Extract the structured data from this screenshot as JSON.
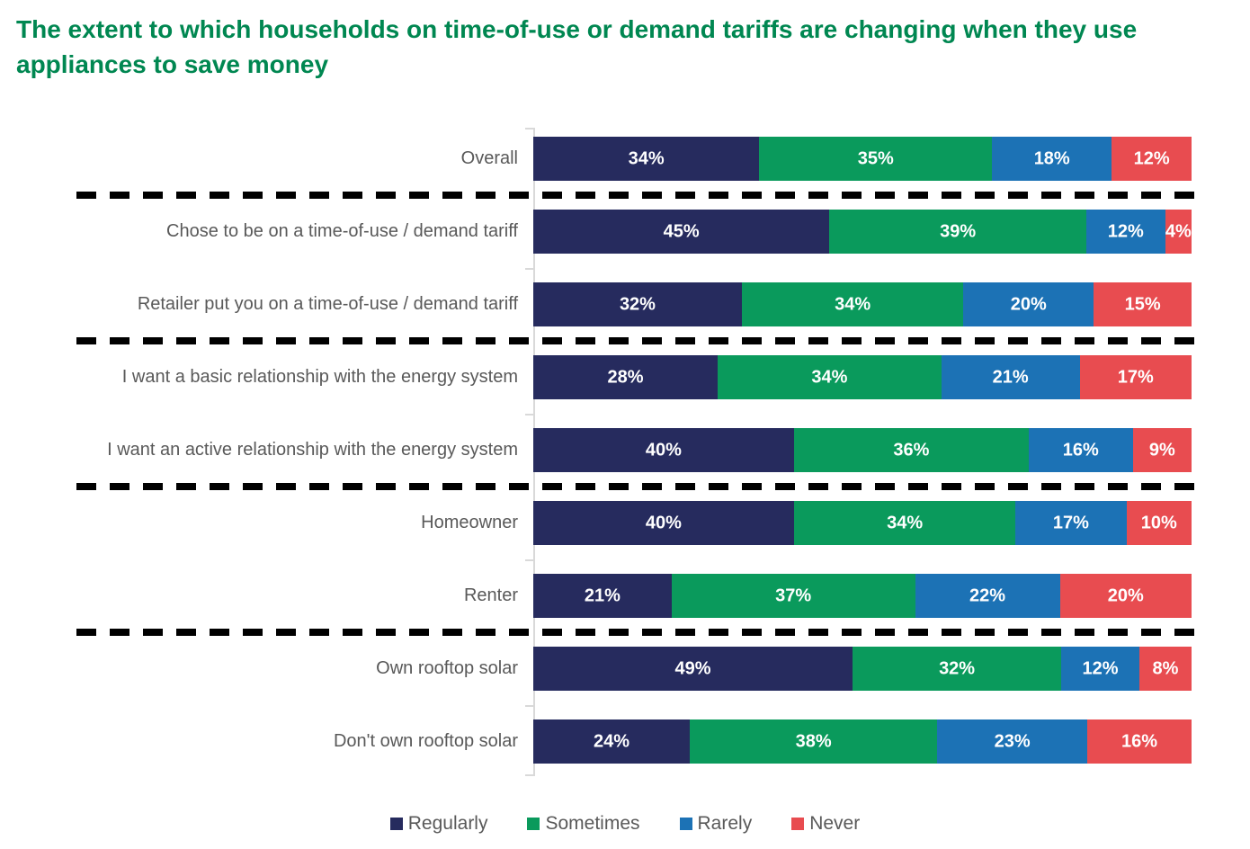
{
  "title": "The extent to which households on time-of-use or demand tariffs are changing when they use appliances to save money",
  "title_color": "#008751",
  "chart_data": {
    "type": "bar",
    "subtype": "horizontal-stacked-100",
    "unit": "%",
    "categories": [
      "Overall",
      "Chose to be on a time-of-use / demand tariff",
      "Retailer put you on a time-of-use / demand tariff",
      "I want a basic relationship with the energy system",
      "I want an active relationship with the energy system",
      "Homeowner",
      "Renter",
      "Own rooftop solar",
      "Don't own rooftop solar"
    ],
    "series": [
      {
        "name": "Regularly",
        "color": "#262B5E",
        "values": [
          34,
          45,
          32,
          28,
          40,
          40,
          21,
          49,
          24
        ]
      },
      {
        "name": "Sometimes",
        "color": "#0A9A5C",
        "values": [
          35,
          39,
          34,
          34,
          36,
          34,
          37,
          32,
          38
        ]
      },
      {
        "name": "Rarely",
        "color": "#1C72B5",
        "values": [
          18,
          12,
          20,
          21,
          16,
          17,
          22,
          12,
          23
        ]
      },
      {
        "name": "Never",
        "color": "#E84C50",
        "values": [
          12,
          4,
          15,
          17,
          9,
          10,
          20,
          8,
          16
        ]
      }
    ],
    "value_labels": "inside, white, suffixed with %",
    "legend_position": "bottom-center",
    "group_separators_after_category_index": [
      0,
      2,
      4,
      6
    ],
    "separator_style": "thick black dashed line",
    "axis_line_color": "#D9D9D9",
    "category_label_color": "#595959",
    "xlim": [
      0,
      100
    ],
    "grid": false
  }
}
